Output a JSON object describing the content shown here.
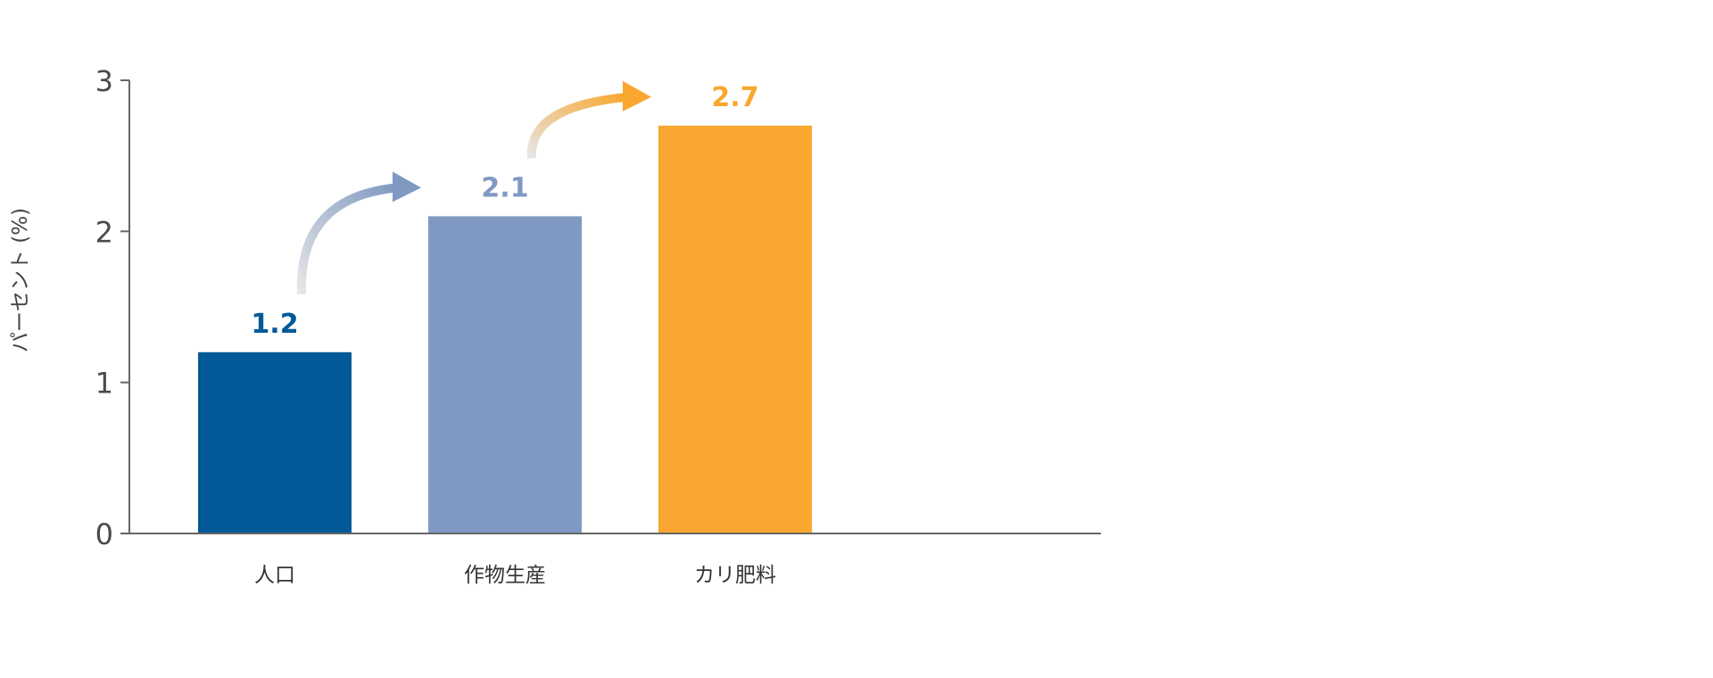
{
  "chart_data": {
    "type": "bar",
    "title": "",
    "xlabel": "",
    "ylabel": "パーセント (%)",
    "ylim": [
      0,
      3
    ],
    "yticks": [
      0,
      1,
      2,
      3
    ],
    "grid": false,
    "categories": [
      "人口",
      "作物生産",
      "カリ肥料"
    ],
    "values": [
      1.2,
      2.1,
      2.7
    ],
    "value_labels": [
      "1.2",
      "2.1",
      "2.7"
    ],
    "colors": [
      "#025a99",
      "#8099c2",
      "#f9a730"
    ],
    "annotations": [
      "arrow from 人口 to 作物生産",
      "arrow from 作物生産 to カリ肥料"
    ]
  }
}
